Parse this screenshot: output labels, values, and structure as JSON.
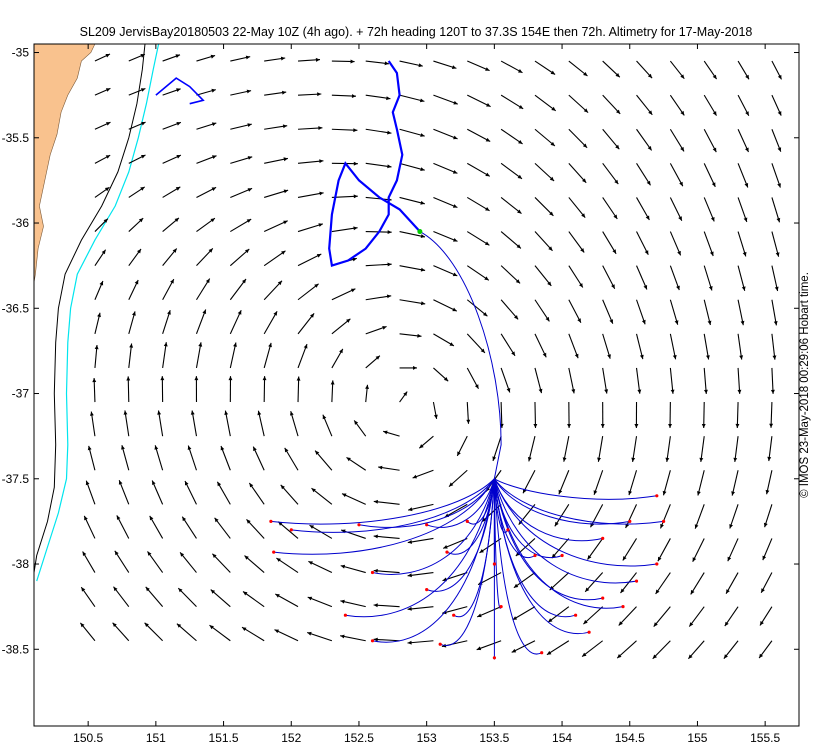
{
  "title": "SL209 JervisBay20180503 22-May 10Z (4h ago). + 72h heading 120T to 37.3S 154E then 72h. Altimetry for 17-May-2018",
  "credit": "© IMOS 23-May-2018 00:29:06 Hobart time.",
  "colors": {
    "land": "#f9c28e",
    "track": "#0000ff",
    "forecast": "#0000cc",
    "contour_cyan": "#00e5ee",
    "contour_black": "#000000",
    "current_marker": "#00cc00",
    "end_marker": "#ff0000",
    "arrows": "#000000"
  },
  "chart_data": {
    "type": "map",
    "title": "SL209 JervisBay20180503 22-May 10Z (4h ago). + 72h heading 120T to 37.3S 154E then 72h. Altimetry for 17-May-2018",
    "xlim": [
      150.1,
      155.75
    ],
    "ylim": [
      -38.95,
      -34.95
    ],
    "xticks": [
      150.5,
      151,
      151.5,
      152,
      152.5,
      153,
      153.5,
      154,
      154.5,
      155,
      155.5
    ],
    "yticks": [
      -35,
      -35.5,
      -36,
      -36.5,
      -37,
      -37.5,
      -38,
      -38.5
    ],
    "xtick_labels": [
      "150.5",
      "151",
      "151.5",
      "152",
      "152.5",
      "153",
      "153.5",
      "154",
      "154.5",
      "155",
      "155.5"
    ],
    "ytick_labels": [
      "-35",
      "-35.5",
      "-36",
      "-36.5",
      "-37",
      "-37.5",
      "-38",
      "-38.5"
    ],
    "grid": false,
    "current_position": [
      152.95,
      -36.05
    ],
    "forecast_waypoint": [
      153.55,
      -37.3
    ],
    "forecast_fan_origin": [
      153.5,
      -37.5
    ],
    "forecast_endpoints": [
      [
        151.85,
        -37.75
      ],
      [
        151.87,
        -37.93
      ],
      [
        152.0,
        -37.8
      ],
      [
        152.5,
        -37.77
      ],
      [
        153.0,
        -37.77
      ],
      [
        153.15,
        -37.93
      ],
      [
        153.3,
        -37.75
      ],
      [
        153.5,
        -38.0
      ],
      [
        153.6,
        -37.8
      ],
      [
        153.8,
        -37.95
      ],
      [
        154.0,
        -37.95
      ],
      [
        154.3,
        -37.85
      ],
      [
        154.5,
        -37.75
      ],
      [
        154.7,
        -37.6
      ],
      [
        154.75,
        -37.75
      ],
      [
        152.6,
        -38.05
      ],
      [
        153.0,
        -38.15
      ],
      [
        153.2,
        -38.3
      ],
      [
        153.5,
        -38.55
      ],
      [
        153.85,
        -38.52
      ],
      [
        154.1,
        -38.3
      ],
      [
        154.3,
        -38.2
      ],
      [
        154.45,
        -38.25
      ],
      [
        154.55,
        -38.1
      ],
      [
        154.7,
        -38.0
      ],
      [
        152.4,
        -38.3
      ],
      [
        152.6,
        -38.45
      ],
      [
        153.1,
        -38.47
      ],
      [
        153.55,
        -38.25
      ],
      [
        154.2,
        -38.4
      ]
    ],
    "current_field_model": "cyclonic eddy centred near 152.9E 37.1S over a southward coastal flow",
    "arrow_grid": {
      "lon_start": 150.55,
      "lon_step": 0.25,
      "lat_start": -35.05,
      "lat_step": 0.2,
      "lon_count": 21,
      "lat_count": 19
    }
  }
}
